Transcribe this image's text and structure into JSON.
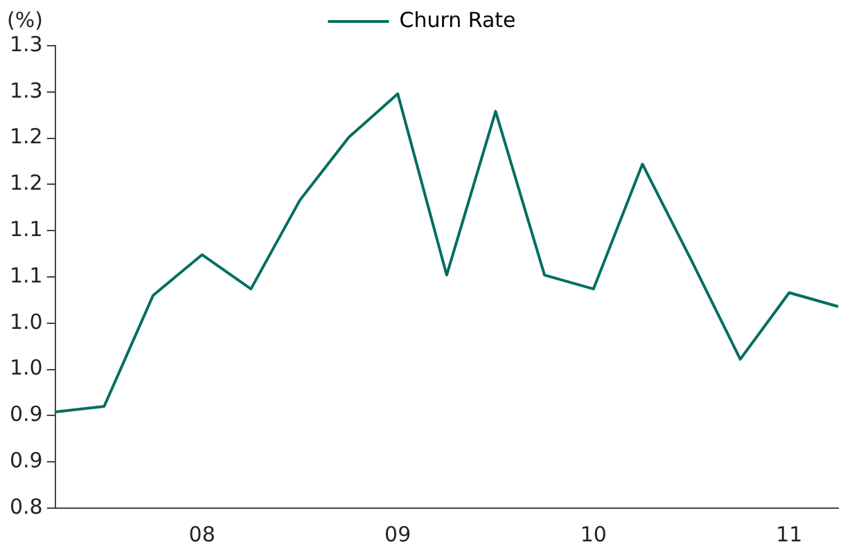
{
  "chart_data": {
    "type": "line",
    "ylabel": "(%)",
    "categories": [
      null,
      null,
      null,
      "08",
      null,
      null,
      null,
      "09",
      null,
      null,
      null,
      "10",
      null,
      null,
      null,
      "11",
      null
    ],
    "series": [
      {
        "name": "Churn Rate",
        "color": "#006e5f",
        "values": [
          0.904,
          0.91,
          1.03,
          1.074,
          1.037,
          1.133,
          1.201,
          1.248,
          1.052,
          1.229,
          1.052,
          1.037,
          1.172,
          1.068,
          0.961,
          1.033,
          1.018
        ]
      }
    ],
    "ylim": [
      0.8,
      1.3
    ],
    "yticks": [
      {
        "value": 0.8,
        "label": "0.8"
      },
      {
        "value": 0.85,
        "label": "0.9"
      },
      {
        "value": 0.9,
        "label": "0.9"
      },
      {
        "value": 0.95,
        "label": "1.0"
      },
      {
        "value": 1.0,
        "label": "1.0"
      },
      {
        "value": 1.05,
        "label": "1.1"
      },
      {
        "value": 1.1,
        "label": "1.1"
      },
      {
        "value": 1.15,
        "label": "1.2"
      },
      {
        "value": 1.2,
        "label": "1.2"
      },
      {
        "value": 1.25,
        "label": "1.3"
      },
      {
        "value": 1.3,
        "label": "1.3"
      }
    ],
    "grid": false,
    "legend": "top",
    "marker": "none",
    "line_style": "solid"
  }
}
